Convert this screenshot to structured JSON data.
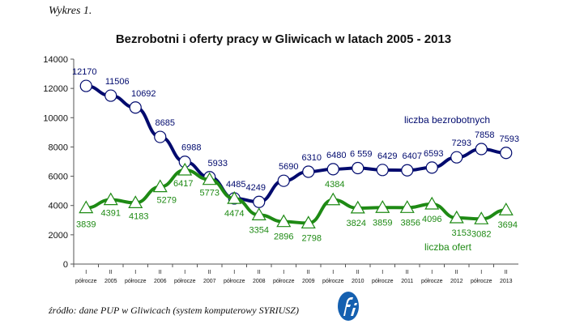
{
  "caption": "Wykres 1.",
  "source": "źródło: dane PUP w Gliwicach (system komputerowy SYRIUSZ)",
  "chart_data": {
    "type": "line",
    "title": "Bezrobotni i oferty pracy w Gliwicach w latach 2005 - 2013",
    "xlabel": "",
    "ylabel": "",
    "ylim": [
      0,
      14000
    ],
    "yticks": [
      0,
      2000,
      4000,
      6000,
      8000,
      10000,
      12000,
      14000
    ],
    "grid": false,
    "categories": [
      [
        "I",
        "półrocze"
      ],
      [
        "II",
        "2005"
      ],
      [
        "I",
        "półrocze"
      ],
      [
        "II",
        "2006"
      ],
      [
        "I",
        "półrocze"
      ],
      [
        "II",
        "2007"
      ],
      [
        "I",
        "półrocze"
      ],
      [
        "II",
        "2008"
      ],
      [
        "I",
        "półrocze"
      ],
      [
        "II",
        "2009"
      ],
      [
        "I",
        "półrocze"
      ],
      [
        "II",
        "2010"
      ],
      [
        "I",
        "półrocze"
      ],
      [
        "II",
        "2011"
      ],
      [
        "I",
        "półrocze"
      ],
      [
        "II",
        "2012"
      ],
      [
        "I",
        "półrocze"
      ],
      [
        "II",
        "2013"
      ]
    ],
    "series": [
      {
        "name": "liczba bezrobotnych",
        "color": "#000a6e",
        "marker": "circle",
        "values": [
          12170,
          11506,
          10692,
          8685,
          6988,
          5933,
          4485,
          4249,
          5690,
          6310,
          6480,
          6559,
          6429,
          6407,
          6593,
          7293,
          7858,
          7593
        ],
        "labels": [
          "12170",
          "11506",
          "10692",
          "8685",
          "6988",
          "5933",
          "4485",
          "4249",
          "5690",
          "6310",
          "6480",
          "6 559",
          "6429",
          "6407",
          "6593",
          "7293",
          "7858",
          "7593"
        ]
      },
      {
        "name": "liczba ofert",
        "color": "#1e8a14",
        "marker": "triangle",
        "values": [
          3839,
          4391,
          4183,
          5279,
          6417,
          5773,
          4474,
          3354,
          2896,
          2798,
          4384,
          3824,
          3859,
          3856,
          4096,
          3153,
          3082,
          3694
        ],
        "labels": [
          "3839",
          "4391",
          "4183",
          "5279",
          "6417",
          "5773",
          "4474",
          "3354",
          "2896",
          "2798",
          "4384",
          "3824",
          "3859",
          "3856",
          "4096",
          "3153",
          "3082",
          "3694"
        ]
      }
    ]
  },
  "logo": "fi"
}
